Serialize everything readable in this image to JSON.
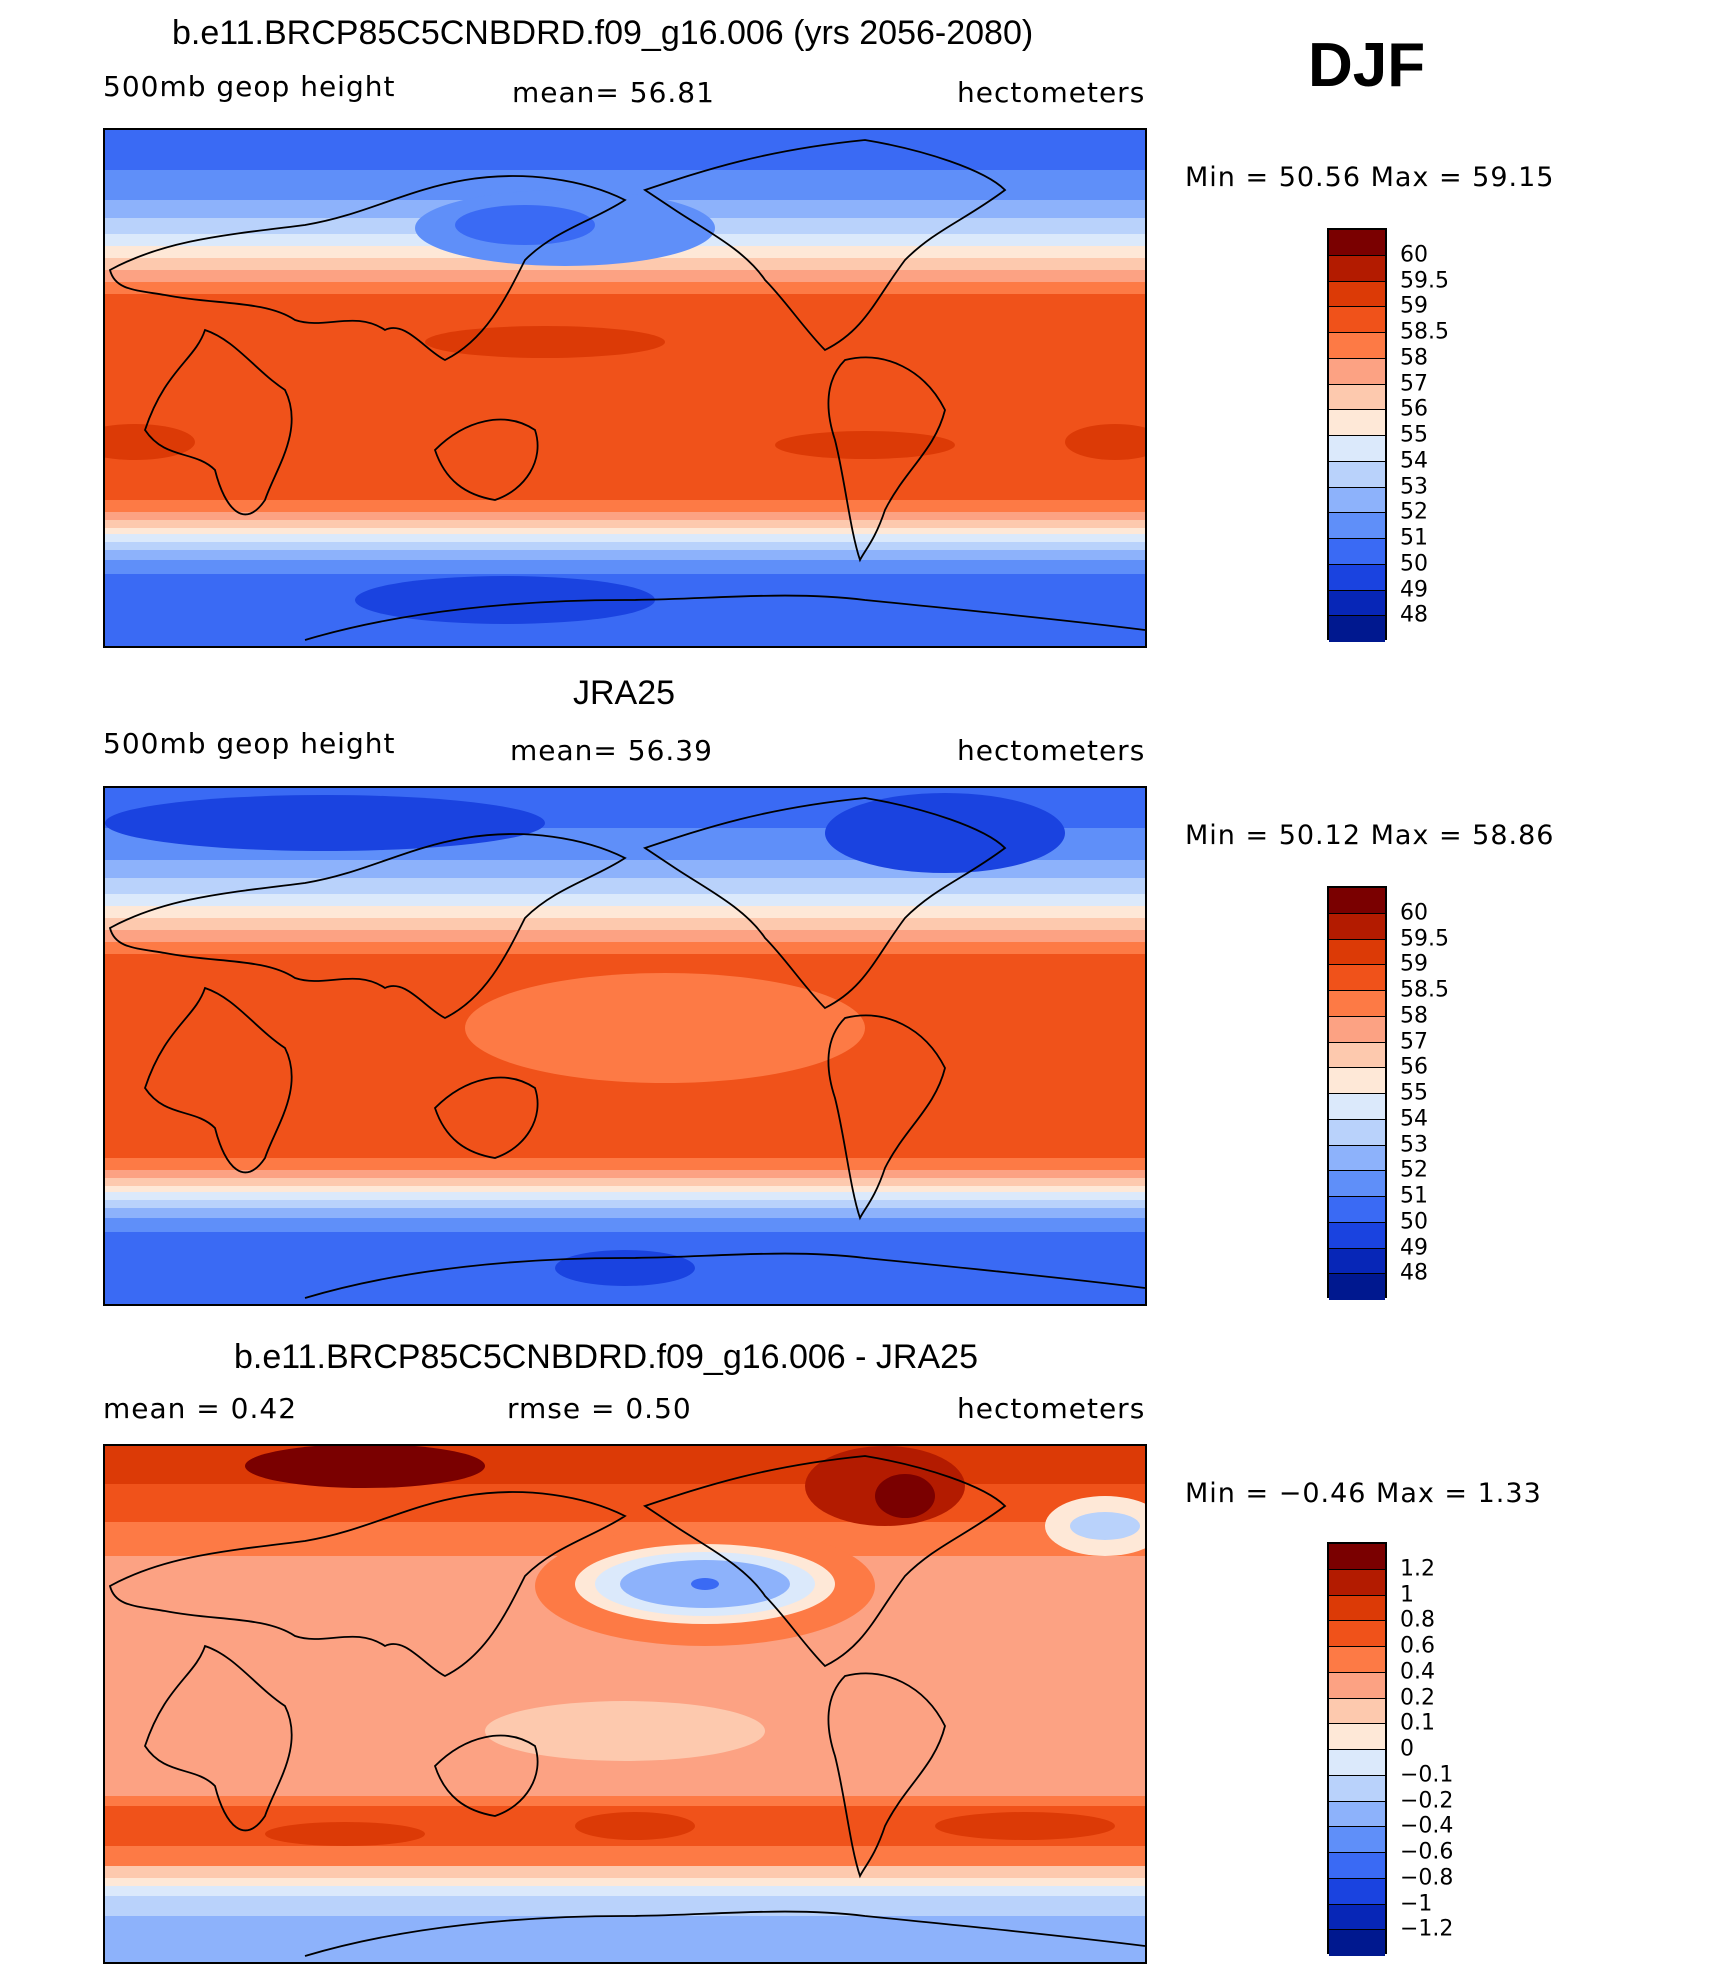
{
  "season": "DJF",
  "panels": [
    {
      "title": "b.e11.BRCP85C5CNBDRD.f09_g16.006 (yrs 2056-2080)",
      "left_label": "500mb geop height",
      "center_label": "mean=  56.81",
      "right_label": "hectometers",
      "minmax": "Min =   50.56 Max =   59.15",
      "levels": [
        "60",
        "59.5",
        "59",
        "58.5",
        "58",
        "57",
        "56",
        "55",
        "54",
        "53",
        "52",
        "51",
        "50",
        "49",
        "48"
      ],
      "colors": [
        "#7a0000",
        "#b31b00",
        "#dc3a06",
        "#f0521a",
        "#fd7a45",
        "#fca283",
        "#fdc9ae",
        "#fee8d7",
        "#dbe9fb",
        "#b9d2fb",
        "#8db2fb",
        "#5f8ff9",
        "#3a6af4",
        "#1a43e0",
        "#0726b7",
        "#00188f"
      ]
    },
    {
      "title": "JRA25",
      "left_label": "500mb geop height",
      "center_label": "mean=  56.39",
      "right_label": "hectometers",
      "minmax": "Min =   50.12 Max =   58.86",
      "levels": [
        "60",
        "59.5",
        "59",
        "58.5",
        "58",
        "57",
        "56",
        "55",
        "54",
        "53",
        "52",
        "51",
        "50",
        "49",
        "48"
      ],
      "colors": [
        "#7a0000",
        "#b31b00",
        "#dc3a06",
        "#f0521a",
        "#fd7a45",
        "#fca283",
        "#fdc9ae",
        "#fee8d7",
        "#dbe9fb",
        "#b9d2fb",
        "#8db2fb",
        "#5f8ff9",
        "#3a6af4",
        "#1a43e0",
        "#0726b7",
        "#00188f"
      ]
    },
    {
      "title": "b.e11.BRCP85C5CNBDRD.f09_g16.006 - JRA25",
      "left_label": "mean =    0.42",
      "center_label": "rmse =    0.50",
      "right_label": "hectometers",
      "minmax": "Min =  −0.46 Max =    1.33",
      "levels": [
        "1.2",
        "1",
        "0.8",
        "0.6",
        "0.4",
        "0.2",
        "0.1",
        "0",
        "−0.1",
        "−0.2",
        "−0.4",
        "−0.6",
        "−0.8",
        "−1",
        "−1.2"
      ],
      "colors": [
        "#7a0000",
        "#b31b00",
        "#dc3a06",
        "#f0521a",
        "#fd7a45",
        "#fca283",
        "#fdc9ae",
        "#fee8d7",
        "#dbe9fb",
        "#b9d2fb",
        "#8db2fb",
        "#5f8ff9",
        "#3a6af4",
        "#1a43e0",
        "#0726b7",
        "#00188f"
      ]
    }
  ]
}
